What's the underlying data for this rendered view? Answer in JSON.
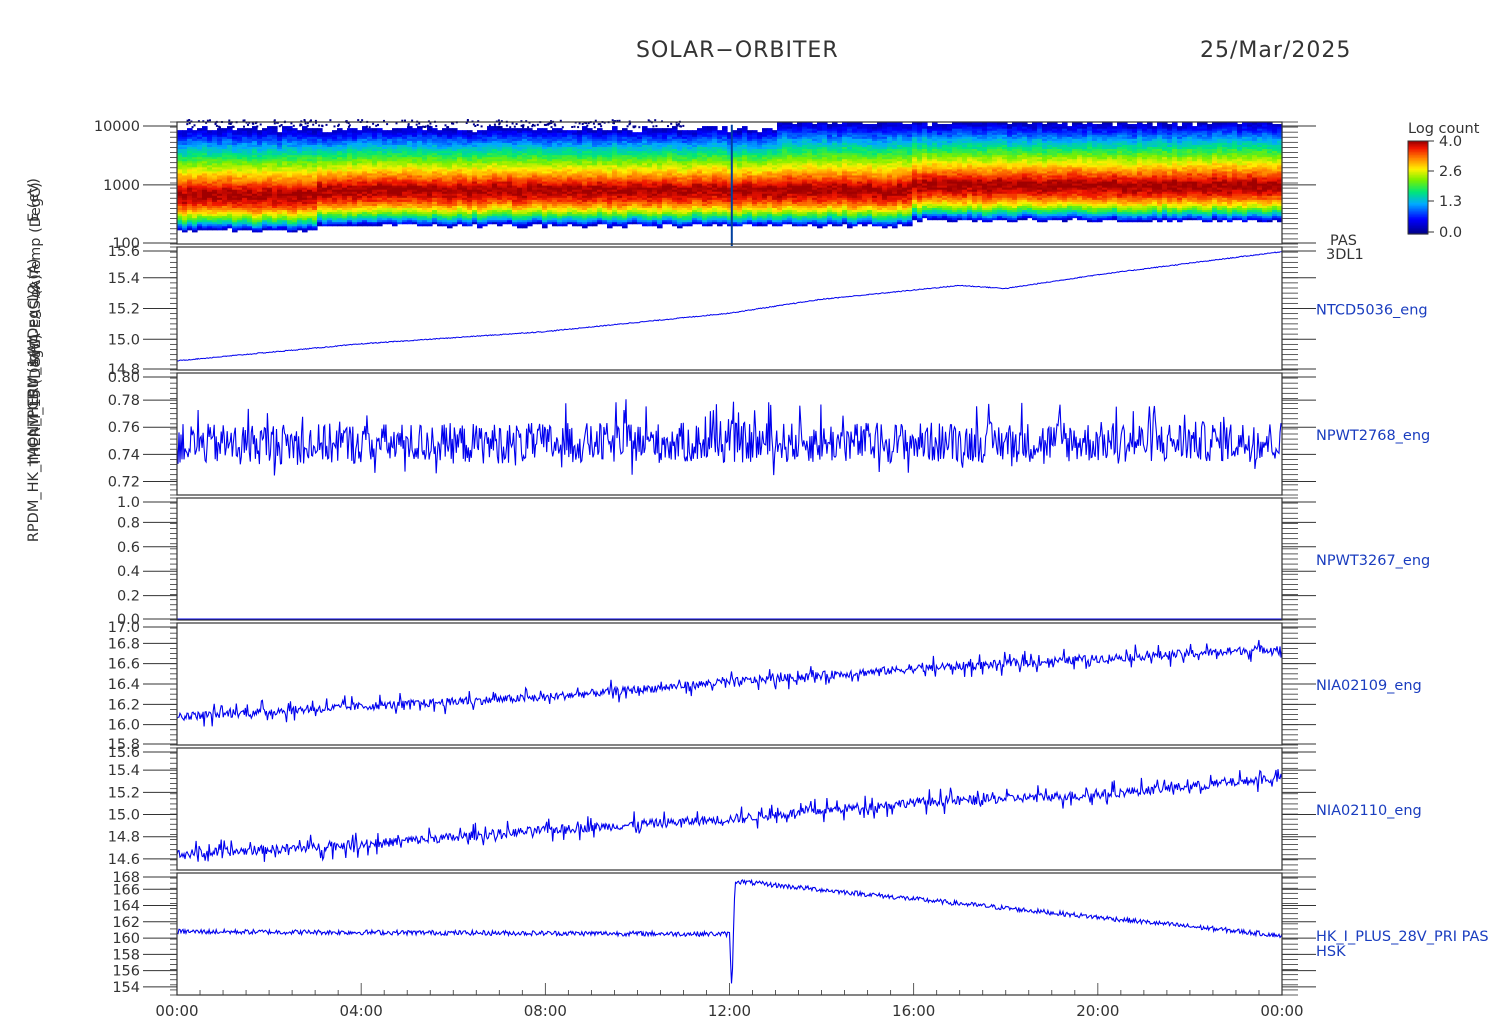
{
  "header": {
    "mission": "SOLAR−ORBITER",
    "date": "25/Mar/2025"
  },
  "colorbar": {
    "title": "Log count",
    "ticks": [
      "4.0",
      "2.6",
      "1.3",
      "0.0"
    ]
  },
  "x_axis": {
    "ticks": [
      "00:00",
      "04:00",
      "08:00",
      "12:00",
      "16:00",
      "20:00",
      "00:00"
    ]
  },
  "chart_data": [
    {
      "type": "heatmap",
      "panel": "spectrogram",
      "ylabel": "E (eV)",
      "yscale": "log",
      "ylim": [
        100,
        10000
      ],
      "yticks": [
        "10000",
        "1000",
        "100"
      ],
      "right_labels": [
        "PAS",
        "3DL1"
      ],
      "value_range": [
        0.0,
        4.0
      ],
      "peak_energy_eV": 700,
      "upper_cutoff_eV": [
        8000,
        12000
      ]
    },
    {
      "type": "line",
      "series_label": "NTCD5036_eng",
      "ylabel": "ox Temp (DegC)",
      "ylim": [
        14.8,
        15.6
      ],
      "yticks": [
        "15.6",
        "15.4",
        "15.2",
        "15.0",
        "14.8"
      ],
      "x": [
        0,
        4,
        8,
        12,
        14,
        16,
        17,
        18,
        20,
        24
      ],
      "values": [
        14.86,
        14.97,
        15.05,
        15.17,
        15.26,
        15.32,
        15.35,
        15.33,
        15.42,
        15.57
      ]
    },
    {
      "type": "line",
      "series_label": "NPWT2768_eng",
      "ylabel": "L2 (A)",
      "ylim": [
        0.71,
        0.8
      ],
      "yticks": [
        "0.80",
        "0.78",
        "0.76",
        "0.74",
        "0.72"
      ],
      "x": [
        0,
        24
      ],
      "values": [
        0.743,
        0.745
      ],
      "noise_amplitude": 0.03
    },
    {
      "type": "line",
      "series_label": "NPWT3267_eng",
      "ylabel": "SWA-EAS (A)",
      "ylim": [
        0.0,
        1.0
      ],
      "yticks": [
        "1.0",
        "0.8",
        "0.6",
        "0.4",
        "0.2",
        "0.0"
      ],
      "x": [
        0,
        24
      ],
      "values": [
        0.0,
        0.0
      ]
    },
    {
      "type": "line",
      "series_label": "NIA02109_eng",
      "ylabel": "THERM_14 (DegC)",
      "ylim": [
        15.8,
        17.0
      ],
      "yticks": [
        "17.0",
        "16.8",
        "16.6",
        "16.4",
        "16.2",
        "16.0",
        "15.8"
      ],
      "x": [
        0,
        4,
        8,
        12,
        16,
        20,
        24
      ],
      "values": [
        16.08,
        16.18,
        16.27,
        16.42,
        16.55,
        16.65,
        16.75
      ]
    },
    {
      "type": "line",
      "series_label": "NIA02110_eng",
      "ylabel": "THERM_15 (DegC)",
      "ylim": [
        14.5,
        15.6
      ],
      "yticks": [
        "15.6",
        "15.4",
        "15.2",
        "15.0",
        "14.8",
        "14.6"
      ],
      "x": [
        0,
        4,
        8,
        12,
        16,
        20,
        24
      ],
      "values": [
        14.64,
        14.73,
        14.86,
        14.96,
        15.11,
        15.18,
        15.33
      ]
    },
    {
      "type": "line",
      "series_label": "HK_I_PLUS_28V_PRI PAS",
      "series_label_2": "HSK",
      "ylabel": "RPDM_HK_IMON_PCDU (mA)",
      "ylim": [
        153,
        168
      ],
      "yticks": [
        "168",
        "166",
        "164",
        "162",
        "160",
        "158",
        "156",
        "154"
      ],
      "x": [
        0,
        12.0,
        12.05,
        12.12,
        24
      ],
      "values": [
        160.8,
        160.5,
        153.5,
        167.0,
        160.3
      ]
    }
  ]
}
